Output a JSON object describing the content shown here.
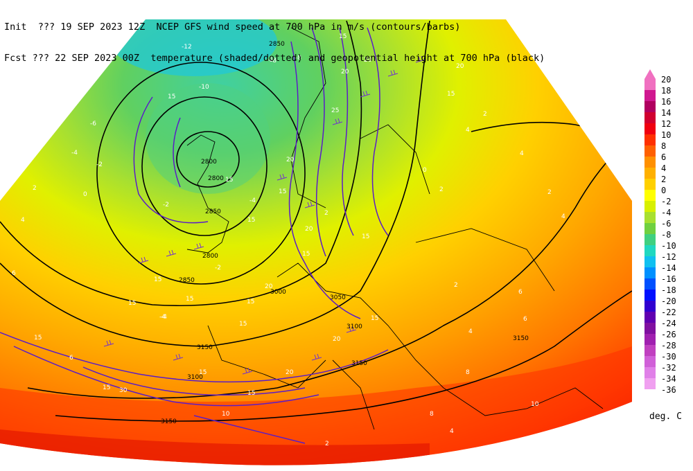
{
  "header": {
    "line1": "Init  ??? 19 SEP 2023 12Z  NCEP GFS wind speed at 700 hPa in m/s (contours/barbs)",
    "line2": "Fcst ??? 22 SEP 2023 00Z  temperature (shaded/dotted) and geopotential height at 700 hPa (black)"
  },
  "colorbar": {
    "units": "deg. C",
    "levels": [
      "20",
      "18",
      "16",
      "14",
      "12",
      "10",
      "8",
      "6",
      "4",
      "2",
      "0",
      "-2",
      "-4",
      "-6",
      "-8",
      "-10",
      "-12",
      "-14",
      "-16",
      "-18",
      "-20",
      "-22",
      "-24",
      "-26",
      "-28",
      "-30",
      "-32",
      "-34",
      "-36"
    ],
    "colors": [
      "#f070c0",
      "#d01890",
      "#b00060",
      "#d00030",
      "#f00010",
      "#ff3000",
      "#ff6000",
      "#ff9000",
      "#ffb000",
      "#ffd000",
      "#ffff00",
      "#d8f000",
      "#a8e030",
      "#70d040",
      "#40d080",
      "#20d8c0",
      "#10c0f0",
      "#0090ff",
      "#0050ff",
      "#0010ff",
      "#3000d0",
      "#6000b0",
      "#8010a0",
      "#a020b0",
      "#c040c0",
      "#d060d8",
      "#e080e8",
      "#f0a0f0"
    ]
  },
  "height_labels": [
    "2850",
    "2800",
    "2800",
    "2850",
    "2800",
    "2850",
    "3000",
    "3050",
    "3100",
    "3150",
    "3150",
    "3100",
    "3150",
    "3150"
  ],
  "wind_labels": [
    "15",
    "15",
    "15",
    "15",
    "20",
    "20",
    "25",
    "15",
    "20",
    "15",
    "15",
    "15",
    "20",
    "15",
    "15",
    "15",
    "20",
    "15",
    "15",
    "20",
    "30",
    "15",
    "15",
    "20",
    "15",
    "15",
    "20",
    "15"
  ],
  "temp_labels": [
    "-12",
    "-10",
    "-8",
    "-6",
    "-4",
    "-2",
    "0",
    "2",
    "4",
    "6",
    "-4",
    "-2",
    "-6",
    "-8",
    "-4",
    "2",
    "2",
    "4",
    "4",
    "4",
    "2",
    "6",
    "2",
    "6",
    "2",
    "4",
    "6",
    "10",
    "8",
    "8",
    "10",
    "-4",
    "-2",
    "2",
    "4",
    "0"
  ]
}
